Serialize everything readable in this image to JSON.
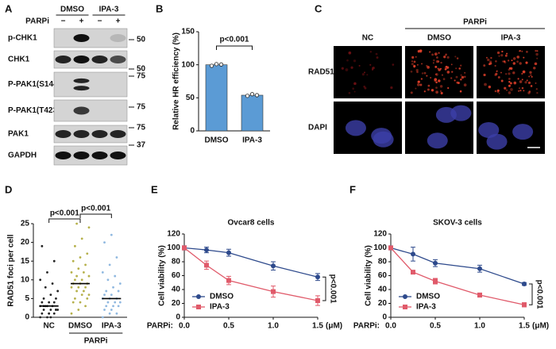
{
  "panel_labels": [
    "A",
    "B",
    "C",
    "D",
    "E",
    "F"
  ],
  "blot": {
    "groups": [
      "DMSO",
      "IPA-3"
    ],
    "treatment": "PARPi",
    "signs": [
      "−",
      "+",
      "−",
      "+"
    ],
    "rows": [
      "p-CHK1",
      "CHK1",
      "P-PAK1(S144)",
      "P-PAK1(T423)",
      "PAK1",
      "GAPDH"
    ],
    "markers": [
      "50",
      "50",
      "75",
      "75",
      "75",
      "37"
    ]
  },
  "microscopy": {
    "treatment": "PARPi",
    "columns": [
      "NC",
      "DMSO",
      "IPA-3"
    ],
    "rows": [
      "RAD51",
      "DAPI"
    ]
  },
  "chart_data": [
    {
      "type": "bar",
      "ylabel": "Relative HR efficiency (%)",
      "categories": [
        "DMSO",
        "IPA-3"
      ],
      "values": [
        100,
        54
      ],
      "points": [
        [
          98.5,
          101,
          100.5
        ],
        [
          53,
          55.5,
          54
        ]
      ],
      "color": "#5b9bd5",
      "ylim": [
        0,
        150
      ],
      "yticks": [
        0,
        50,
        100,
        150
      ],
      "annotation": "p<0.001"
    },
    {
      "type": "dot",
      "ylabel": "RAD51 foci per cell",
      "categories": [
        "NC",
        "DMSO",
        "IPA-3"
      ],
      "xlabel": "PARPi",
      "values": [
        3,
        9,
        5
      ],
      "colors": [
        "#222222",
        "#b5b04a",
        "#8fb8e0"
      ],
      "points": [
        [
          0,
          0,
          1,
          1,
          1,
          2,
          2,
          2,
          2,
          3,
          3,
          3,
          3,
          4,
          4,
          4,
          5,
          5,
          6,
          7,
          8,
          9,
          10,
          12,
          15,
          19,
          1,
          2,
          3,
          0
        ],
        [
          1,
          2,
          3,
          4,
          4,
          5,
          5,
          6,
          6,
          7,
          7,
          8,
          8,
          8,
          9,
          9,
          9,
          10,
          10,
          11,
          11,
          12,
          12,
          13,
          14,
          15,
          16,
          17,
          19,
          21,
          24,
          25
        ],
        [
          0,
          1,
          1,
          2,
          2,
          3,
          3,
          3,
          4,
          4,
          4,
          5,
          5,
          5,
          6,
          6,
          7,
          7,
          8,
          9,
          10,
          11,
          12,
          14,
          16,
          20,
          22
        ]
      ],
      "ylim": [
        0,
        25
      ],
      "yticks": [
        0,
        5,
        10,
        15,
        20,
        25
      ],
      "annotations": [
        "p<0.001",
        "p<0.001"
      ]
    },
    {
      "type": "line",
      "title": "Ovcar8 cells",
      "ylabel": "Cell viability (%)",
      "xlabel": "PARPi:",
      "x_unit": "(μM)",
      "x": [
        0,
        0.25,
        0.5,
        1.0,
        1.5
      ],
      "series": [
        {
          "name": "DMSO",
          "color": "#2e4a8c",
          "marker": "circle",
          "values": [
            100,
            97,
            93,
            74,
            58
          ],
          "errors": [
            3,
            4,
            5,
            6,
            5
          ]
        },
        {
          "name": "IPA-3",
          "color": "#e05a6a",
          "marker": "square",
          "values": [
            100,
            75,
            53,
            37,
            24
          ],
          "errors": [
            3,
            6,
            6,
            8,
            7
          ]
        }
      ],
      "xlim": [
        0,
        1.5
      ],
      "xticks": [
        {
          "value": 0,
          "label": "0.0"
        },
        {
          "value": 0.5,
          "label": "0.5"
        },
        {
          "value": 1.0,
          "label": "1.0"
        },
        {
          "value": 1.5,
          "label": "1.5"
        }
      ],
      "ylim": [
        0,
        120
      ],
      "yticks": [
        0,
        20,
        40,
        60,
        80,
        100,
        120
      ],
      "annotation": "p<0.001"
    },
    {
      "type": "line",
      "title": "SKOV-3 cells",
      "ylabel": "Cell viability (%)",
      "xlabel": "PARPi:",
      "x_unit": "(μM)",
      "x": [
        0,
        0.25,
        0.5,
        1.0,
        1.5
      ],
      "series": [
        {
          "name": "DMSO",
          "color": "#2e4a8c",
          "marker": "circle",
          "values": [
            100,
            91,
            78,
            70,
            48
          ],
          "errors": [
            3,
            10,
            5,
            5,
            2
          ]
        },
        {
          "name": "IPA-3",
          "color": "#e05a6a",
          "marker": "square",
          "values": [
            100,
            65,
            52,
            32,
            18
          ],
          "errors": [
            2,
            2,
            4,
            3,
            3
          ]
        }
      ],
      "xlim": [
        0,
        1.5
      ],
      "xticks": [
        {
          "value": 0,
          "label": "0.0"
        },
        {
          "value": 0.5,
          "label": "0.5"
        },
        {
          "value": 1.0,
          "label": "1.0"
        },
        {
          "value": 1.5,
          "label": "1.5"
        }
      ],
      "ylim": [
        0,
        120
      ],
      "yticks": [
        0,
        20,
        40,
        60,
        80,
        100,
        120
      ],
      "annotation": "p<0.001"
    }
  ]
}
